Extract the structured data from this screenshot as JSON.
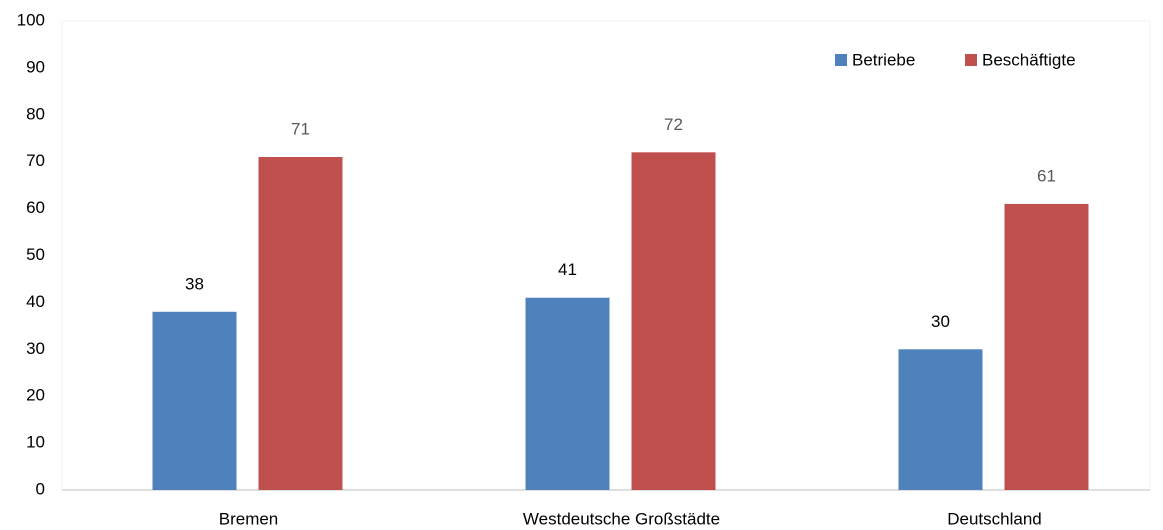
{
  "chart_data": {
    "type": "bar",
    "categories": [
      "Bremen",
      "Westdeutsche Großstädte",
      "Deutschland"
    ],
    "series": [
      {
        "name": "Betriebe",
        "color": "#4f81bd",
        "label_color": "#000000",
        "values": [
          38,
          41,
          30
        ]
      },
      {
        "name": "Beschäftigte",
        "color": "#c0504d",
        "label_color": "#595959",
        "values": [
          71,
          72,
          61
        ]
      }
    ],
    "ylim": [
      0,
      100
    ],
    "yticks": [
      0,
      10,
      20,
      30,
      40,
      50,
      60,
      70,
      80,
      90,
      100
    ],
    "grid": false,
    "legend": "top-right"
  }
}
